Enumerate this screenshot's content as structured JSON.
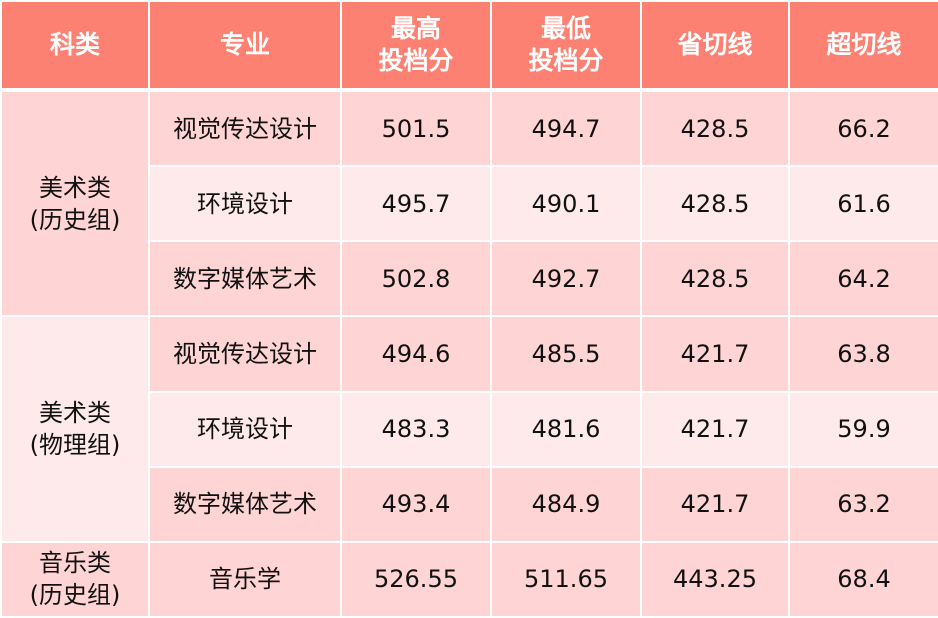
{
  "headers": [
    "科类",
    "专业",
    "最高\n投档分",
    "最低\n投档分",
    "省切线",
    "超切线"
  ],
  "header_lines": [
    [
      "科类"
    ],
    [
      "专业"
    ],
    [
      "最高",
      "投档分"
    ],
    [
      "最低",
      "投档分"
    ],
    [
      "省切线"
    ],
    [
      "超切线"
    ]
  ],
  "groups": [
    {
      "category": [
        "美术类",
        "(历史组)"
      ],
      "rows": [
        {
          "major": "视觉传达设计",
          "max": "501.5",
          "min": "494.7",
          "line": "428.5",
          "over": "66.2"
        },
        {
          "major": "环境设计",
          "max": "495.7",
          "min": "490.1",
          "line": "428.5",
          "over": "61.6"
        },
        {
          "major": "数字媒体艺术",
          "max": "502.8",
          "min": "492.7",
          "line": "428.5",
          "over": "64.2"
        }
      ]
    },
    {
      "category": [
        "美术类",
        "(物理组)"
      ],
      "rows": [
        {
          "major": "视觉传达设计",
          "max": "494.6",
          "min": "485.5",
          "line": "421.7",
          "over": "63.8"
        },
        {
          "major": "环境设计",
          "max": "483.3",
          "min": "481.6",
          "line": "421.7",
          "over": "59.9"
        },
        {
          "major": "数字媒体艺术",
          "max": "493.4",
          "min": "484.9",
          "line": "421.7",
          "over": "63.2"
        }
      ]
    },
    {
      "category": [
        "音乐类",
        "(历史组)"
      ],
      "rows": [
        {
          "major": "音乐学",
          "max": "526.55",
          "min": "511.65",
          "line": "443.25",
          "over": "68.4"
        }
      ]
    }
  ],
  "colors": {
    "header": "#fd8173",
    "row_dark": "#fed5d4",
    "row_light": "#feeaea"
  }
}
